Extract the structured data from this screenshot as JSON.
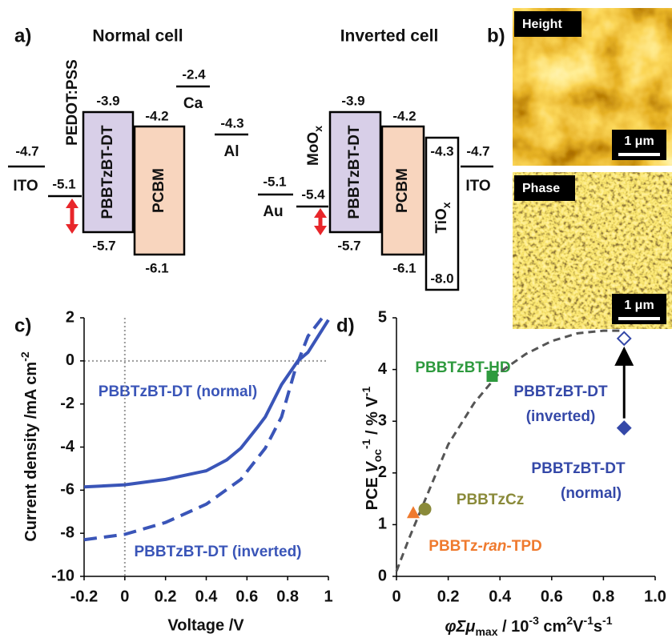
{
  "panel_labels": [
    "a)",
    "b)",
    "c)",
    "d)"
  ],
  "diagram": {
    "normal": {
      "title": "Normal cell",
      "ito": {
        "label": "ITO",
        "level": "-4.7"
      },
      "pedot": {
        "label": "PEDOT:PSS",
        "level": "-5.1"
      },
      "donor": {
        "label": "PBBTzBT-DT",
        "top": "-3.9",
        "bottom": "-5.7"
      },
      "acceptor": {
        "label": "PCBM",
        "top": "-4.2",
        "bottom": "-6.1"
      },
      "ca": {
        "label": "Ca",
        "level": "-2.4"
      },
      "al": {
        "label": "Al",
        "level": "-4.3"
      }
    },
    "inverted": {
      "title": "Inverted cell",
      "au": {
        "label": "Au",
        "level": "-5.1"
      },
      "moox": {
        "label": [
          "MoO",
          "x"
        ],
        "level": "-5.4"
      },
      "donor": {
        "label": "PBBTzBT-DT",
        "top": "-3.9",
        "bottom": "-5.7"
      },
      "acceptor": {
        "label": "PCBM",
        "top": "-4.2",
        "bottom": "-6.1"
      },
      "tiox": {
        "label": [
          "TiO",
          "x"
        ],
        "top": "-4.3",
        "bottom": "-8.0"
      },
      "ito": {
        "label": "ITO",
        "level": "-4.7"
      }
    }
  },
  "images": {
    "height": {
      "label": "Height",
      "scale": "1 μm"
    },
    "phase": {
      "label": "Phase",
      "scale": "1 μm"
    }
  },
  "chart_data": [
    {
      "type": "line",
      "x_label": "Voltage /V",
      "y_label": [
        "Current density /mA cm",
        "-2"
      ],
      "xlim": [
        -0.2,
        1
      ],
      "xticks": [
        -0.2,
        0,
        0.2,
        0.4,
        0.6,
        0.8,
        1
      ],
      "ylim": [
        -10,
        2
      ],
      "yticks": [
        -10,
        -8,
        -6,
        -4,
        -2,
        0,
        2
      ],
      "zero_lines": true,
      "series": [
        {
          "name": "PBBTzBT-DT (normal)",
          "color": "#3a55b8",
          "dashed": false,
          "x": [
            -0.2,
            0,
            0.2,
            0.4,
            0.5,
            0.57,
            0.65,
            0.69,
            0.77,
            0.85,
            0.9,
            1.0
          ],
          "values": [
            -5.85,
            -5.75,
            -5.5,
            -5.1,
            -4.6,
            -4.05,
            -3.1,
            -2.6,
            -1.1,
            0,
            0.4,
            1.9
          ]
        },
        {
          "name": "PBBTzBT-DT (inverted)",
          "color": "#3a55b8",
          "dashed": true,
          "x": [
            -0.2,
            0,
            0.2,
            0.4,
            0.57,
            0.69,
            0.77,
            0.84,
            0.9,
            0.97
          ],
          "values": [
            -8.3,
            -8.05,
            -7.5,
            -6.65,
            -5.5,
            -4.05,
            -2.6,
            -0.3,
            1.15,
            2.0
          ]
        }
      ]
    },
    {
      "type": "scatter",
      "x_label": [
        "φΣμ",
        "max",
        " / 10",
        "-3",
        " cm",
        "2",
        "V",
        "-1",
        "s",
        "-1"
      ],
      "y_label": [
        "PCE ",
        "V",
        "oc",
        "-1",
        "  /  % V",
        "-1"
      ],
      "xlim": [
        0,
        1
      ],
      "xticks": [
        0,
        0.2,
        0.4,
        0.6,
        0.8,
        {
          "value": 1,
          "label": "1.0"
        }
      ],
      "ylim": [
        0,
        5
      ],
      "yticks": [
        0,
        1,
        2,
        3,
        4,
        5
      ],
      "series": [
        {
          "label": [
            "PBBTzBT-HD"
          ],
          "color": "#2e9a3e",
          "marker": "square",
          "x": [
            0.37
          ],
          "values": [
            3.87
          ]
        },
        {
          "label": [
            "PBBTzBT-DT",
            "(inverted)"
          ],
          "color": "#3448a8",
          "marker": "open-diamond",
          "x": [
            0.88
          ],
          "values": [
            4.6
          ]
        },
        {
          "label": [
            "PBBTzBT-DT",
            "(normal)"
          ],
          "color": "#3448a8",
          "marker": "diamond",
          "x": [
            0.88
          ],
          "values": [
            2.87
          ]
        },
        {
          "label": [
            "PBBTzCz"
          ],
          "color": "#8a8a3a",
          "marker": "circle",
          "x": [
            0.11
          ],
          "values": [
            1.3
          ]
        },
        {
          "label": [
            [
              "PBBTz-",
              "ran",
              "-TPD"
            ]
          ],
          "color": "#ef7a2e",
          "marker": "triangle",
          "x": [
            0.065
          ],
          "values": [
            1.22
          ]
        }
      ],
      "fit": {
        "color": "#555555",
        "x": [
          0,
          0.05,
          0.1,
          0.2,
          0.3,
          0.4,
          0.5,
          0.6,
          0.7,
          0.8,
          0.88
        ],
        "values": [
          0.1,
          0.75,
          1.35,
          2.55,
          3.35,
          3.95,
          4.3,
          4.55,
          4.7,
          4.75,
          4.75
        ]
      }
    }
  ]
}
